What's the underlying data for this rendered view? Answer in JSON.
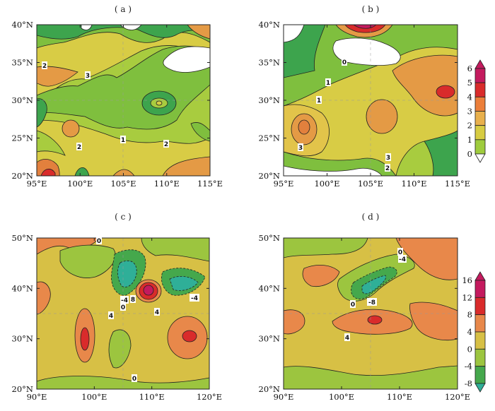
{
  "chart_data": [
    {
      "type": "contour-map",
      "panel": "(a)",
      "title": "( a )",
      "x_ticks": [
        "95°E",
        "100°E",
        "105°E",
        "110°E",
        "115°E"
      ],
      "y_ticks": [
        "20°N",
        "25°N",
        "30°N",
        "35°N",
        "40°N"
      ],
      "xlim": [
        95,
        115
      ],
      "ylim": [
        20,
        40
      ],
      "contour_labels": [
        "2",
        "3",
        "1",
        "2",
        "2"
      ],
      "colorbar_ref": "top"
    },
    {
      "type": "contour-map",
      "panel": "(b)",
      "title": "( b )",
      "x_ticks": [
        "95°E",
        "100°E",
        "105°E",
        "110°E",
        "115°E"
      ],
      "y_ticks": [
        "20°N",
        "25°N",
        "30°N",
        "35°N",
        "40°N"
      ],
      "xlim": [
        95,
        115
      ],
      "ylim": [
        20,
        40
      ],
      "contour_labels": [
        "0",
        "1",
        "1",
        "3",
        "3",
        "2"
      ],
      "colorbar_ref": "top"
    },
    {
      "type": "contour-map",
      "panel": "(c)",
      "title": "( c )",
      "x_ticks": [
        "90°E",
        "100°E",
        "110°E",
        "120°E"
      ],
      "y_ticks": [
        "20°N",
        "30°N",
        "40°N",
        "50°N"
      ],
      "xlim": [
        90,
        120
      ],
      "ylim": [
        20,
        50
      ],
      "contour_labels": [
        "0",
        "-4",
        "0",
        "8",
        "4",
        "4",
        "-4",
        "0"
      ],
      "colorbar_ref": "bottom"
    },
    {
      "type": "contour-map",
      "panel": "(d)",
      "title": "( d )",
      "x_ticks": [
        "90°E",
        "100°E",
        "110°E",
        "120°E"
      ],
      "y_ticks": [
        "20°N",
        "30°N",
        "40°N",
        "50°N"
      ],
      "xlim": [
        90,
        120
      ],
      "ylim": [
        20,
        50
      ],
      "contour_labels": [
        "0",
        "-4",
        "-8",
        "0",
        "4"
      ],
      "colorbar_ref": "bottom"
    }
  ],
  "colorbars": {
    "top": {
      "labels": [
        "6",
        "5",
        "4",
        "3",
        "2",
        "1",
        "0"
      ],
      "colors": [
        "#c41a5e",
        "#d92b2b",
        "#ec7f3a",
        "#e8b04c",
        "#d7cc42",
        "#9fcc3d",
        "#3da44d"
      ],
      "top_arrow_color": "#c41a5e",
      "bottom_arrow_color": "#ffffff"
    },
    "bottom": {
      "labels": [
        "16",
        "12",
        "8",
        "4",
        "0",
        "-4",
        "-8"
      ],
      "colors": [
        "#c41a5e",
        "#d92b2b",
        "#e8884a",
        "#d7c045",
        "#9cc53f",
        "#45a84c",
        "#2faf98"
      ],
      "top_arrow_color": "#c41a5e",
      "bottom_arrow_color": "#2faf98"
    }
  },
  "palette": {
    "white": "#ffffff",
    "dark_green": "#3da44d",
    "green": "#7fbf3e",
    "light_green": "#a8cc3f",
    "yellow": "#d8cc45",
    "orange": "#e49a45",
    "deep_orange": "#e2803d",
    "red": "#d92b2b",
    "magenta": "#c41a5e",
    "teal": "#2faf98",
    "teal_green": "#4aa96c"
  }
}
